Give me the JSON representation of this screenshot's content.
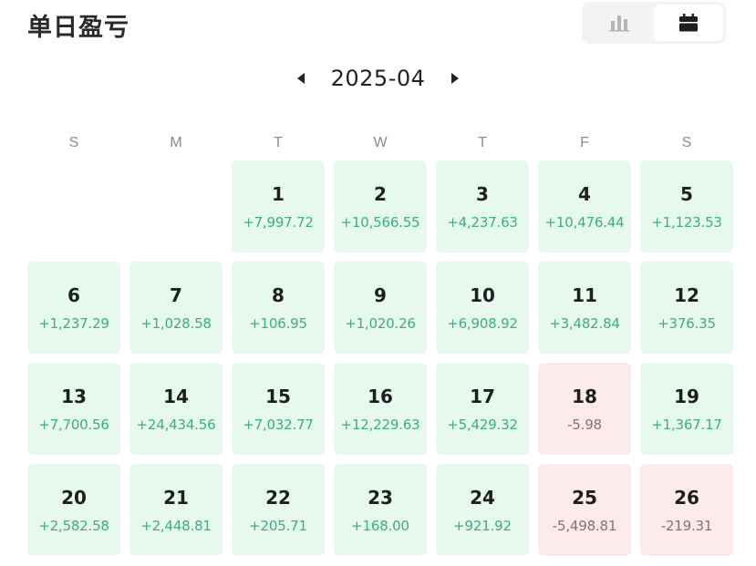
{
  "header": {
    "title": "单日盈亏"
  },
  "view_toggle": {
    "options": [
      "bar-chart-icon",
      "calendar-icon"
    ],
    "active": "calendar-icon"
  },
  "month_nav": {
    "month": "2025-04"
  },
  "weekdays": [
    "S",
    "M",
    "T",
    "W",
    "T",
    "F",
    "S"
  ],
  "colors": {
    "positive_bg": "#e7f8ef",
    "positive_text": "#3caf7a",
    "negative_bg": "#fdeaec",
    "negative_text": "#8e6e72"
  },
  "leading_blank_days": 2,
  "days": [
    {
      "day": "1",
      "pnl": "+7,997.72",
      "sign": "pos"
    },
    {
      "day": "2",
      "pnl": "+10,566.55",
      "sign": "pos"
    },
    {
      "day": "3",
      "pnl": "+4,237.63",
      "sign": "pos"
    },
    {
      "day": "4",
      "pnl": "+10,476.44",
      "sign": "pos"
    },
    {
      "day": "5",
      "pnl": "+1,123.53",
      "sign": "pos"
    },
    {
      "day": "6",
      "pnl": "+1,237.29",
      "sign": "pos"
    },
    {
      "day": "7",
      "pnl": "+1,028.58",
      "sign": "pos"
    },
    {
      "day": "8",
      "pnl": "+106.95",
      "sign": "pos"
    },
    {
      "day": "9",
      "pnl": "+1,020.26",
      "sign": "pos"
    },
    {
      "day": "10",
      "pnl": "+6,908.92",
      "sign": "pos"
    },
    {
      "day": "11",
      "pnl": "+3,482.84",
      "sign": "pos"
    },
    {
      "day": "12",
      "pnl": "+376.35",
      "sign": "pos"
    },
    {
      "day": "13",
      "pnl": "+7,700.56",
      "sign": "pos"
    },
    {
      "day": "14",
      "pnl": "+24,434.56",
      "sign": "pos"
    },
    {
      "day": "15",
      "pnl": "+7,032.77",
      "sign": "pos"
    },
    {
      "day": "16",
      "pnl": "+12,229.63",
      "sign": "pos"
    },
    {
      "day": "17",
      "pnl": "+5,429.32",
      "sign": "pos"
    },
    {
      "day": "18",
      "pnl": "-5.98",
      "sign": "neg"
    },
    {
      "day": "19",
      "pnl": "+1,367.17",
      "sign": "pos"
    },
    {
      "day": "20",
      "pnl": "+2,582.58",
      "sign": "pos"
    },
    {
      "day": "21",
      "pnl": "+2,448.81",
      "sign": "pos"
    },
    {
      "day": "22",
      "pnl": "+205.71",
      "sign": "pos"
    },
    {
      "day": "23",
      "pnl": "+168.00",
      "sign": "pos"
    },
    {
      "day": "24",
      "pnl": "+921.92",
      "sign": "pos"
    },
    {
      "day": "25",
      "pnl": "-5,498.81",
      "sign": "neg"
    },
    {
      "day": "26",
      "pnl": "-219.31",
      "sign": "neg"
    }
  ]
}
